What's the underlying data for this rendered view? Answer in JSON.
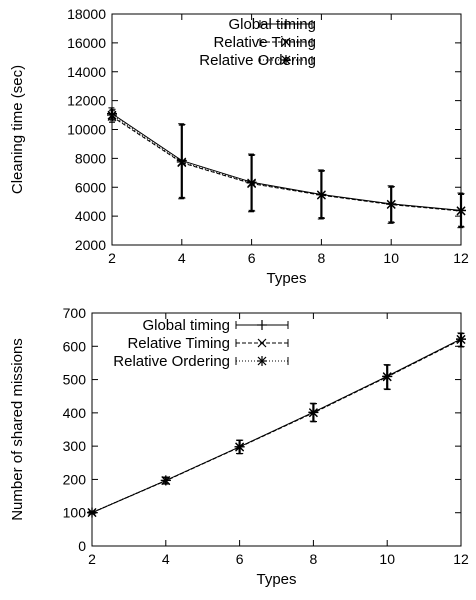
{
  "chart_data": [
    {
      "type": "line",
      "xlabel": "Types",
      "ylabel": "Cleaning time (sec)",
      "xlim": [
        2,
        12
      ],
      "ylim": [
        2000,
        18000
      ],
      "xticks": [
        "2",
        "4",
        "6",
        "8",
        "10",
        "12"
      ],
      "yticks": [
        "2000",
        "4000",
        "6000",
        "8000",
        "10000",
        "12000",
        "14000",
        "16000",
        "18000"
      ],
      "legend_position": "top-right",
      "grid": false,
      "x": [
        2,
        4,
        6,
        8,
        10,
        12
      ],
      "series": [
        {
          "name": "Global timing",
          "marker": "+",
          "dash": "solid",
          "values": [
            11100,
            7850,
            6350,
            5500,
            4850,
            4400
          ],
          "err_low": [
            10700,
            5200,
            4300,
            3800,
            3500,
            3200
          ],
          "err_high": [
            11500,
            10400,
            8300,
            7200,
            6100,
            5600
          ]
        },
        {
          "name": "Relative Timing",
          "marker": "x",
          "dash": "dashed",
          "values": [
            10900,
            7700,
            6250,
            5450,
            4800,
            4350
          ],
          "err_low": [
            10500,
            5300,
            4400,
            3900,
            3600,
            3300
          ],
          "err_high": [
            11300,
            10300,
            8200,
            7100,
            6000,
            5500
          ]
        },
        {
          "name": "Relative Ordering",
          "marker": "*",
          "dash": "dotted",
          "values": [
            11000,
            7750,
            6300,
            5480,
            4830,
            4380
          ],
          "err_low": [
            10600,
            5250,
            4350,
            3850,
            3550,
            3250
          ],
          "err_high": [
            11400,
            10350,
            8250,
            7150,
            6050,
            5550
          ]
        }
      ]
    },
    {
      "type": "line",
      "xlabel": "Types",
      "ylabel": "Number of shared missions",
      "xlim": [
        2,
        12
      ],
      "ylim": [
        0,
        700
      ],
      "xticks": [
        "2",
        "4",
        "6",
        "8",
        "10",
        "12"
      ],
      "yticks": [
        "0",
        "100",
        "200",
        "300",
        "400",
        "500",
        "600",
        "700"
      ],
      "legend_position": "top-left",
      "grid": false,
      "x": [
        2,
        4,
        6,
        8,
        10,
        12
      ],
      "series": [
        {
          "name": "Global timing",
          "marker": "+",
          "dash": "solid",
          "values": [
            100,
            197,
            298,
            402,
            510,
            622
          ],
          "err_low": [
            96,
            187,
            278,
            375,
            472,
            600
          ],
          "err_high": [
            104,
            207,
            318,
            429,
            545,
            640
          ]
        },
        {
          "name": "Relative Timing",
          "marker": "x",
          "dash": "dashed",
          "values": [
            100,
            196,
            297,
            400,
            508,
            620
          ],
          "err_low": [
            96,
            186,
            277,
            373,
            470,
            598
          ],
          "err_high": [
            104,
            206,
            317,
            427,
            543,
            638
          ]
        },
        {
          "name": "Relative Ordering",
          "marker": "*",
          "dash": "dotted",
          "values": [
            101,
            197,
            298,
            401,
            509,
            621
          ],
          "err_low": [
            97,
            187,
            278,
            374,
            471,
            599
          ],
          "err_high": [
            105,
            207,
            318,
            428,
            544,
            639
          ]
        }
      ]
    }
  ]
}
